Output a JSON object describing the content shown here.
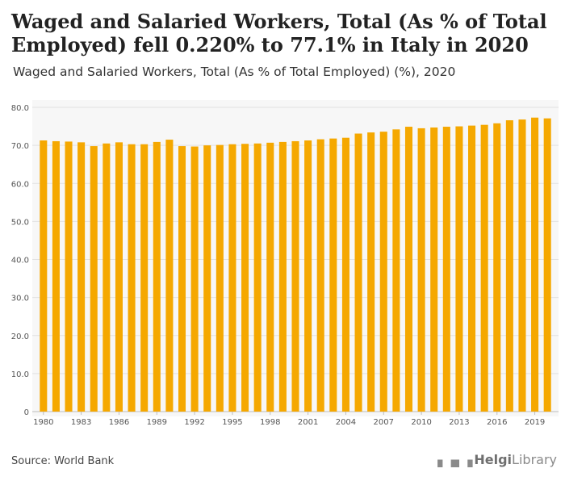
{
  "header": {
    "title": "Waged and Salaried Workers, Total (As % of Total Employed) fell 0.220% to 77.1% in Italy in 2020",
    "subtitle": "Waged and Salaried Workers, Total (As % of Total Employed) (%), 2020"
  },
  "footer": {
    "source": "Source: World Bank",
    "logo_text_bold": "Helgi",
    "logo_text": "Library"
  },
  "chart_data": {
    "type": "bar",
    "title": "",
    "xlabel": "",
    "ylabel": "",
    "ylim": [
      0,
      80
    ],
    "yticks": [
      0,
      10,
      20,
      30,
      40,
      50,
      60,
      70,
      80
    ],
    "ytick_labels": [
      "0",
      "10.0",
      "20.0",
      "30.0",
      "40.0",
      "50.0",
      "60.0",
      "70.0",
      "80.0"
    ],
    "xtick_labels": [
      "1980",
      "1983",
      "1986",
      "1989",
      "1992",
      "1995",
      "1998",
      "2001",
      "2004",
      "2007",
      "2010",
      "2013",
      "2016",
      "2019"
    ],
    "categories": [
      "1980",
      "1981",
      "1982",
      "1983",
      "1984",
      "1985",
      "1986",
      "1987",
      "1988",
      "1989",
      "1990",
      "1991",
      "1992",
      "1993",
      "1994",
      "1995",
      "1996",
      "1997",
      "1998",
      "1999",
      "2000",
      "2001",
      "2002",
      "2003",
      "2004",
      "2005",
      "2006",
      "2007",
      "2008",
      "2009",
      "2010",
      "2011",
      "2012",
      "2013",
      "2014",
      "2015",
      "2016",
      "2017",
      "2018",
      "2019",
      "2020"
    ],
    "values": [
      71.3,
      71.1,
      71.0,
      70.8,
      69.8,
      70.5,
      70.8,
      70.3,
      70.3,
      70.9,
      71.5,
      69.8,
      69.7,
      70.0,
      70.1,
      70.3,
      70.4,
      70.5,
      70.7,
      70.9,
      71.1,
      71.3,
      71.6,
      71.8,
      72.0,
      73.1,
      73.4,
      73.6,
      74.2,
      74.9,
      74.5,
      74.7,
      74.9,
      75.0,
      75.2,
      75.4,
      75.8,
      76.6,
      76.8,
      77.3,
      77.1
    ],
    "bar_color": "#f5a800",
    "grid": true
  }
}
